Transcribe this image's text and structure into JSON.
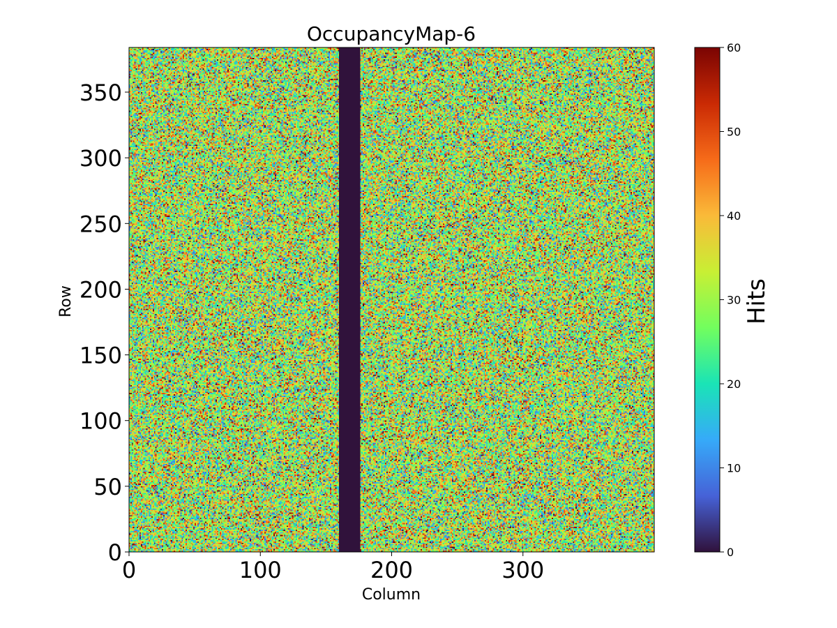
{
  "chart_data": {
    "type": "heatmap",
    "title": "OccupancyMap-6",
    "xlabel": "Column",
    "ylabel": "Row",
    "xlim": [
      0,
      400
    ],
    "ylim": [
      0,
      384
    ],
    "xticks": [
      0,
      100,
      200,
      300
    ],
    "yticks": [
      0,
      50,
      100,
      150,
      200,
      250,
      300,
      350
    ],
    "colorbar": {
      "label": "Hits",
      "colormap": "turbo",
      "vmin": 0,
      "vmax": 60,
      "ticks": [
        0,
        10,
        20,
        30,
        40,
        50,
        60
      ]
    },
    "grid": false,
    "columns": 400,
    "rows": 384,
    "distribution": "random hits per pixel, roughly uniform 0-60 across the sensor",
    "dead_columns": {
      "start": 160,
      "end": 176,
      "value": 0
    },
    "colors": {
      "dead": "#30123b",
      "colormap_stops": [
        "#30123b",
        "#4662d7",
        "#36aaf9",
        "#1ae4b6",
        "#72fe5e",
        "#c8ef34",
        "#faba39",
        "#f66b19",
        "#ca2a04",
        "#7a0403"
      ]
    }
  }
}
